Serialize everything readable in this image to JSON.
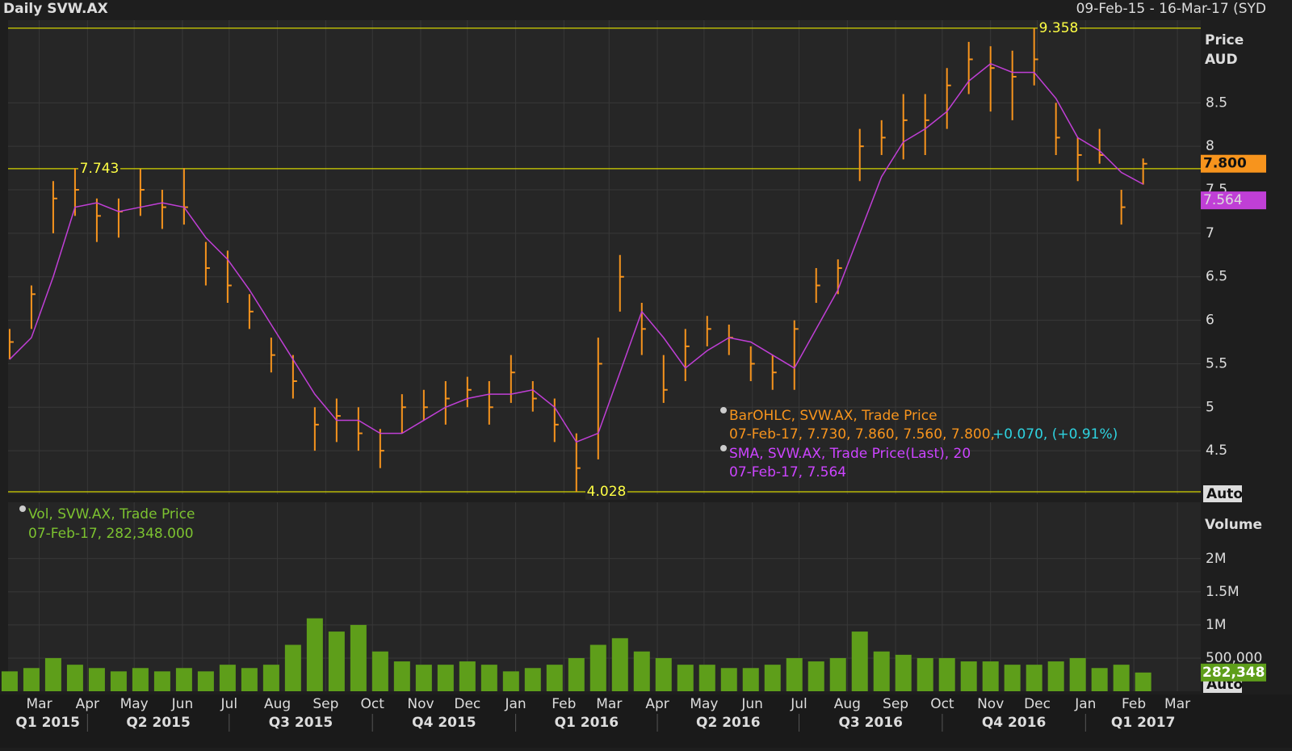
{
  "chart_data": [
    {
      "type": "ohlc",
      "title": "Daily SVW.AX",
      "subtitle": "09-Feb-15 - 16-Mar-17 (SYD",
      "y_label": [
        "Price",
        "AUD"
      ],
      "scale_mode": "Auto",
      "x": [
        "2015-02-10",
        "2015-02-24",
        "2015-03-10",
        "2015-03-24",
        "2015-04-07",
        "2015-04-21",
        "2015-05-05",
        "2015-05-19",
        "2015-06-02",
        "2015-06-16",
        "2015-06-30",
        "2015-07-14",
        "2015-07-28",
        "2015-08-11",
        "2015-08-25",
        "2015-09-08",
        "2015-09-22",
        "2015-10-06",
        "2015-10-20",
        "2015-11-03",
        "2015-11-17",
        "2015-12-01",
        "2015-12-15",
        "2015-12-29",
        "2016-01-12",
        "2016-01-26",
        "2016-02-09",
        "2016-02-23",
        "2016-03-08",
        "2016-03-22",
        "2016-04-05",
        "2016-04-19",
        "2016-05-03",
        "2016-05-17",
        "2016-05-31",
        "2016-06-14",
        "2016-06-28",
        "2016-07-12",
        "2016-07-26",
        "2016-08-09",
        "2016-08-23",
        "2016-09-06",
        "2016-09-20",
        "2016-10-04",
        "2016-10-18",
        "2016-11-01",
        "2016-11-15",
        "2016-11-29",
        "2016-12-13",
        "2016-12-27",
        "2017-01-10",
        "2017-01-24",
        "2017-02-07"
      ],
      "xlim": [
        "2015-02-09",
        "2017-03-16"
      ],
      "series": [
        {
          "name": "BarOHLC, SVW.AX, Trade Price",
          "color": "#f7941d",
          "high": [
            5.9,
            6.4,
            7.6,
            7.75,
            7.4,
            7.4,
            7.74,
            7.5,
            7.75,
            6.9,
            6.8,
            6.3,
            5.8,
            5.6,
            5.0,
            5.1,
            5.0,
            4.75,
            5.15,
            5.2,
            5.3,
            5.35,
            5.3,
            5.6,
            5.3,
            5.1,
            4.7,
            5.8,
            6.75,
            6.2,
            5.6,
            5.9,
            6.05,
            5.95,
            5.7,
            5.6,
            6.0,
            6.6,
            6.7,
            8.2,
            8.3,
            8.6,
            8.6,
            8.9,
            9.2,
            9.15,
            9.1,
            9.358,
            8.5,
            8.1,
            8.2,
            7.5,
            7.86
          ],
          "low": [
            5.55,
            5.9,
            7.0,
            7.2,
            6.9,
            6.95,
            7.2,
            7.05,
            7.1,
            6.4,
            6.2,
            5.9,
            5.4,
            5.1,
            4.5,
            4.6,
            4.5,
            4.3,
            4.7,
            4.85,
            4.8,
            5.0,
            4.8,
            5.05,
            4.95,
            4.6,
            4.028,
            4.4,
            6.1,
            5.6,
            5.05,
            5.3,
            5.7,
            5.6,
            5.3,
            5.2,
            5.2,
            6.2,
            6.3,
            7.6,
            7.9,
            7.85,
            7.9,
            8.2,
            8.6,
            8.4,
            8.3,
            8.7,
            7.9,
            7.6,
            7.8,
            7.1,
            7.56
          ],
          "close": [
            5.75,
            6.3,
            7.4,
            7.5,
            7.2,
            7.25,
            7.5,
            7.3,
            7.3,
            6.6,
            6.4,
            6.1,
            5.6,
            5.3,
            4.8,
            4.9,
            4.7,
            4.5,
            5.0,
            5.0,
            5.1,
            5.2,
            5.0,
            5.4,
            5.1,
            4.8,
            4.3,
            5.5,
            6.5,
            5.9,
            5.2,
            5.7,
            5.9,
            5.8,
            5.5,
            5.4,
            5.9,
            6.4,
            6.6,
            8.0,
            8.1,
            8.3,
            8.3,
            8.7,
            9.0,
            8.9,
            8.8,
            9.0,
            8.1,
            7.9,
            7.9,
            7.3,
            7.8
          ]
        },
        {
          "name": "SMA, SVW.AX, Trade Price(Last),  20",
          "color": "#c03fd6",
          "values": [
            5.55,
            5.8,
            6.5,
            7.3,
            7.35,
            7.25,
            7.3,
            7.35,
            7.3,
            6.95,
            6.7,
            6.35,
            5.95,
            5.55,
            5.15,
            4.85,
            4.85,
            4.7,
            4.7,
            4.85,
            5.0,
            5.1,
            5.15,
            5.15,
            5.2,
            5.0,
            4.6,
            4.7,
            5.4,
            6.1,
            5.8,
            5.45,
            5.65,
            5.8,
            5.75,
            5.6,
            5.45,
            5.9,
            6.35,
            7.0,
            7.65,
            8.05,
            8.2,
            8.4,
            8.75,
            8.95,
            8.85,
            8.85,
            8.55,
            8.1,
            7.95,
            7.7,
            7.564
          ]
        }
      ],
      "legend": [
        {
          "text": "07-Feb-17, 7.730, 7.860, 7.560, 7.800,",
          "change": "+0.070, (+0.91%)"
        },
        {
          "text": "07-Feb-17, 7.564"
        }
      ],
      "ylim": [
        4.0,
        9.45
      ],
      "yticks": [
        4.5,
        5,
        5.5,
        6,
        6.5,
        7,
        7.5,
        8,
        8.5
      ],
      "reference_lines": [
        9.358,
        7.743,
        4.028
      ],
      "last_price": {
        "value": 7.8,
        "label": "7.800"
      },
      "last_sma": 7.564,
      "grid": true
    },
    {
      "type": "bar",
      "y_label": "Volume",
      "scale_mode": "Auto",
      "series": [
        {
          "name": "Vol, SVW.AX, Trade Price",
          "color": "#5e9e1a",
          "values": [
            300000,
            350000,
            500000,
            400000,
            350000,
            300000,
            350000,
            300000,
            350000,
            300000,
            400000,
            350000,
            400000,
            700000,
            1100000,
            900000,
            1000000,
            600000,
            450000,
            400000,
            400000,
            450000,
            400000,
            300000,
            350000,
            400000,
            500000,
            700000,
            800000,
            600000,
            500000,
            400000,
            400000,
            350000,
            350000,
            400000,
            500000,
            450000,
            500000,
            900000,
            600000,
            550000,
            500000,
            500000,
            450000,
            450000,
            400000,
            400000,
            450000,
            500000,
            350000,
            400000,
            282348
          ]
        }
      ],
      "x": [
        "2015-02-10",
        "2015-02-24",
        "2015-03-10",
        "2015-03-24",
        "2015-04-07",
        "2015-04-21",
        "2015-05-05",
        "2015-05-19",
        "2015-06-02",
        "2015-06-16",
        "2015-06-30",
        "2015-07-14",
        "2015-07-28",
        "2015-08-11",
        "2015-08-25",
        "2015-09-08",
        "2015-09-22",
        "2015-10-06",
        "2015-10-20",
        "2015-11-03",
        "2015-11-17",
        "2015-12-01",
        "2015-12-15",
        "2015-12-29",
        "2016-01-12",
        "2016-01-26",
        "2016-02-09",
        "2016-02-23",
        "2016-03-08",
        "2016-03-22",
        "2016-04-05",
        "2016-04-19",
        "2016-05-03",
        "2016-05-17",
        "2016-05-31",
        "2016-06-14",
        "2016-06-28",
        "2016-07-12",
        "2016-07-26",
        "2016-08-09",
        "2016-08-23",
        "2016-09-06",
        "2016-09-20",
        "2016-10-04",
        "2016-10-18",
        "2016-11-01",
        "2016-11-15",
        "2016-11-29",
        "2016-12-13",
        "2016-12-27",
        "2017-01-10",
        "2017-01-24",
        "2017-02-07"
      ],
      "legend": [
        {
          "text": "07-Feb-17, 282,348.000"
        }
      ],
      "xlim": [
        "2015-02-09",
        "2017-03-16"
      ],
      "xticks": [
        {
          "value": "2015-03-01",
          "label": "Mar"
        },
        {
          "value": "2015-04-01",
          "label": "Apr"
        },
        {
          "value": "2015-05-01",
          "label": "May"
        },
        {
          "value": "2015-06-01",
          "label": "Jun"
        },
        {
          "value": "2015-07-01",
          "label": "Jul"
        },
        {
          "value": "2015-08-01",
          "label": "Aug"
        },
        {
          "value": "2015-09-01",
          "label": "Sep"
        },
        {
          "value": "2015-10-01",
          "label": "Oct"
        },
        {
          "value": "2015-11-01",
          "label": "Nov"
        },
        {
          "value": "2015-12-01",
          "label": "Dec"
        },
        {
          "value": "2016-01-01",
          "label": "Jan"
        },
        {
          "value": "2016-02-01",
          "label": "Feb"
        },
        {
          "value": "2016-03-01",
          "label": "Mar"
        },
        {
          "value": "2016-04-01",
          "label": "Apr"
        },
        {
          "value": "2016-05-01",
          "label": "May"
        },
        {
          "value": "2016-06-01",
          "label": "Jun"
        },
        {
          "value": "2016-07-01",
          "label": "Jul"
        },
        {
          "value": "2016-08-01",
          "label": "Aug"
        },
        {
          "value": "2016-09-01",
          "label": "Sep"
        },
        {
          "value": "2016-10-01",
          "label": "Oct"
        },
        {
          "value": "2016-11-01",
          "label": "Nov"
        },
        {
          "value": "2016-12-01",
          "label": "Dec"
        },
        {
          "value": "2017-01-01",
          "label": "Jan"
        },
        {
          "value": "2017-02-01",
          "label": "Feb"
        },
        {
          "value": "2017-03-01",
          "label": "Mar"
        }
      ],
      "quarters": [
        {
          "value": "2015-01-01",
          "label": "Q1 2015"
        },
        {
          "value": "2015-04-01",
          "label": "Q2 2015"
        },
        {
          "value": "2015-07-01",
          "label": "Q3 2015"
        },
        {
          "value": "2015-10-01",
          "label": "Q4 2015"
        },
        {
          "value": "2016-01-01",
          "label": "Q1 2016"
        },
        {
          "value": "2016-04-01",
          "label": "Q2 2016"
        },
        {
          "value": "2016-07-01",
          "label": "Q3 2016"
        },
        {
          "value": "2016-10-01",
          "label": "Q4 2016"
        },
        {
          "value": "2017-01-01",
          "label": "Q1 2017"
        }
      ],
      "ylim": [
        0,
        2850000
      ],
      "yticks": [
        {
          "value": 500000,
          "label": "500,000"
        },
        {
          "value": 1000000,
          "label": "1M"
        },
        {
          "value": 1500000,
          "label": "1.5M"
        },
        {
          "value": 2000000,
          "label": "2M"
        }
      ],
      "last_value": {
        "value": 282348,
        "label": "282,348"
      },
      "grid": true
    }
  ]
}
